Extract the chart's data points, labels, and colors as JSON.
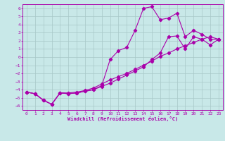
{
  "xlabel": "Windchill (Refroidissement éolien,°C)",
  "bg_color": "#c8e8e8",
  "grid_color": "#a8c8c8",
  "line_color": "#aa00aa",
  "xlim": [
    -0.5,
    23.5
  ],
  "ylim": [
    -6.5,
    6.5
  ],
  "xticks": [
    0,
    1,
    2,
    3,
    4,
    5,
    6,
    7,
    8,
    9,
    10,
    11,
    12,
    13,
    14,
    15,
    16,
    17,
    18,
    19,
    20,
    21,
    22,
    23
  ],
  "yticks": [
    -6,
    -5,
    -4,
    -3,
    -2,
    -1,
    0,
    1,
    2,
    3,
    4,
    5,
    6
  ],
  "line1_x": [
    0,
    1,
    2,
    3,
    4,
    5,
    6,
    7,
    8,
    9,
    10,
    11,
    12,
    13,
    14,
    15,
    16,
    17,
    18,
    19,
    20,
    21,
    22,
    23
  ],
  "line1_y": [
    -4.3,
    -4.5,
    -5.3,
    -5.8,
    -4.4,
    -4.4,
    -4.3,
    -4.1,
    -3.8,
    -3.3,
    -2.8,
    -2.4,
    -2.0,
    -1.5,
    -1.0,
    -0.5,
    0.1,
    0.5,
    1.0,
    1.4,
    1.8,
    2.2,
    2.5,
    2.2
  ],
  "line2_x": [
    0,
    1,
    2,
    3,
    4,
    5,
    6,
    7,
    8,
    9,
    10,
    11,
    12,
    13,
    14,
    15,
    16,
    17,
    18,
    19,
    20,
    21,
    22,
    23
  ],
  "line2_y": [
    -4.3,
    -4.5,
    -5.3,
    -5.8,
    -4.4,
    -4.5,
    -4.4,
    -4.2,
    -4.0,
    -3.5,
    -0.3,
    0.8,
    1.2,
    3.3,
    6.0,
    6.2,
    4.6,
    4.8,
    5.4,
    2.5,
    3.3,
    2.8,
    2.2,
    2.2
  ],
  "line3_x": [
    0,
    1,
    2,
    3,
    4,
    5,
    6,
    7,
    8,
    9,
    10,
    11,
    12,
    13,
    14,
    15,
    16,
    17,
    18,
    19,
    20,
    21,
    22,
    23
  ],
  "line3_y": [
    -4.3,
    -4.5,
    -5.3,
    -5.8,
    -4.4,
    -4.5,
    -4.4,
    -4.2,
    -4.0,
    -3.6,
    -3.2,
    -2.7,
    -2.2,
    -1.7,
    -1.2,
    -0.3,
    0.5,
    2.5,
    2.6,
    1.0,
    2.5,
    2.2,
    1.5,
    2.2
  ]
}
